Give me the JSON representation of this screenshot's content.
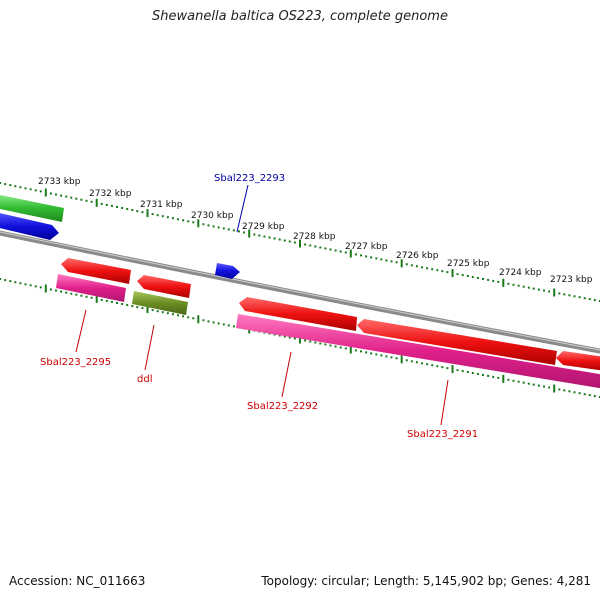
{
  "title": "Shewanella baltica OS223, complete genome",
  "footer": {
    "accession": "Accession: NC_011663",
    "summary": "Topology: circular; Length: 5,145,902 bp; Genes: 4,281"
  },
  "colors": {
    "axis": "#808080",
    "tick": "#1a7a1a",
    "cds_red": "#ee1111",
    "cds_pink": "#e0208a",
    "cds_blue": "#1111dd",
    "cds_green": "#33bb33",
    "cds_olive": "#6b8e23",
    "label_red": "#cc0000",
    "label_blue": "#0000aa"
  },
  "scale": {
    "unit": "kbp",
    "ticks": [
      {
        "value": 2733,
        "label": "2733 kbp"
      },
      {
        "value": 2732,
        "label": "2732 kbp"
      },
      {
        "value": 2731,
        "label": "2731 kbp"
      },
      {
        "value": 2730,
        "label": "2730 kbp"
      },
      {
        "value": 2729,
        "label": "2729 kbp"
      },
      {
        "value": 2728,
        "label": "2728 kbp"
      },
      {
        "value": 2727,
        "label": "2727 kbp"
      },
      {
        "value": 2726,
        "label": "2726 kbp"
      },
      {
        "value": 2725,
        "label": "2725 kbp"
      },
      {
        "value": 2724,
        "label": "2724 kbp"
      },
      {
        "value": 2723,
        "label": "2723 kbp"
      }
    ]
  },
  "gene_labels": [
    {
      "name": "Sbal223_2293",
      "color": "label_blue"
    },
    {
      "name": "Sbal223_2295",
      "color": "label_red"
    },
    {
      "name": "ddl",
      "color": "label_red"
    },
    {
      "name": "Sbal223_2292",
      "color": "label_red"
    },
    {
      "name": "Sbal223_2291",
      "color": "label_red"
    }
  ]
}
